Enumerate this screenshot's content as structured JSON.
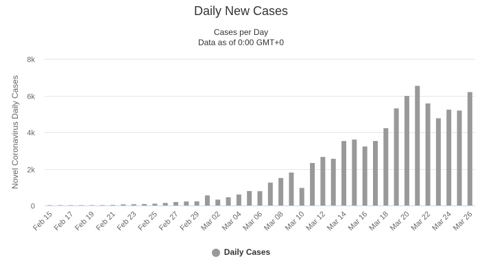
{
  "chart_data": {
    "type": "bar",
    "title": "Daily New Cases",
    "subtitle_lines": [
      "Cases per Day",
      "Data as of 0:00 GMT+0"
    ],
    "ylabel": "Novel Coronavirus Daily Cases",
    "xlabel": "",
    "ylim": [
      0,
      8000
    ],
    "yticks": [
      0,
      2000,
      4000,
      6000,
      8000
    ],
    "ytick_labels": [
      "0",
      "2k",
      "4k",
      "6k",
      "8k"
    ],
    "grid": true,
    "legend_position": "bottom-center",
    "color": "#999999",
    "categories": [
      "Feb 15",
      "Feb 16",
      "Feb 17",
      "Feb 18",
      "Feb 19",
      "Feb 20",
      "Feb 21",
      "Feb 22",
      "Feb 23",
      "Feb 24",
      "Feb 25",
      "Feb 26",
      "Feb 27",
      "Feb 28",
      "Feb 29",
      "Mar 01",
      "Mar 02",
      "Mar 03",
      "Mar 04",
      "Mar 05",
      "Mar 06",
      "Mar 07",
      "Mar 08",
      "Mar 09",
      "Mar 10",
      "Mar 11",
      "Mar 12",
      "Mar 13",
      "Mar 14",
      "Mar 15",
      "Mar 16",
      "Mar 17",
      "Mar 18",
      "Mar 19",
      "Mar 20",
      "Mar 21",
      "Mar 22",
      "Mar 23",
      "Mar 24",
      "Mar 25",
      "Mar 26"
    ],
    "xtick_labels": [
      "Feb 15",
      "Feb 17",
      "Feb 19",
      "Feb 21",
      "Feb 23",
      "Feb 25",
      "Feb 27",
      "Feb 29",
      "Mar 02",
      "Mar 04",
      "Mar 06",
      "Mar 08",
      "Mar 10",
      "Mar 12",
      "Mar 14",
      "Mar 16",
      "Mar 18",
      "Mar 20",
      "Mar 22",
      "Mar 24",
      "Mar 26"
    ],
    "series": [
      {
        "name": "Daily Cases",
        "values": [
          10,
          15,
          10,
          10,
          10,
          20,
          30,
          60,
          70,
          80,
          100,
          140,
          190,
          220,
          230,
          550,
          320,
          450,
          600,
          790,
          780,
          1250,
          1500,
          1800,
          960,
          2320,
          2650,
          2550,
          3520,
          3600,
          3220,
          3520,
          4220,
          5300,
          5980,
          6530,
          5570,
          4760,
          5230,
          5180,
          6190
        ]
      }
    ]
  }
}
